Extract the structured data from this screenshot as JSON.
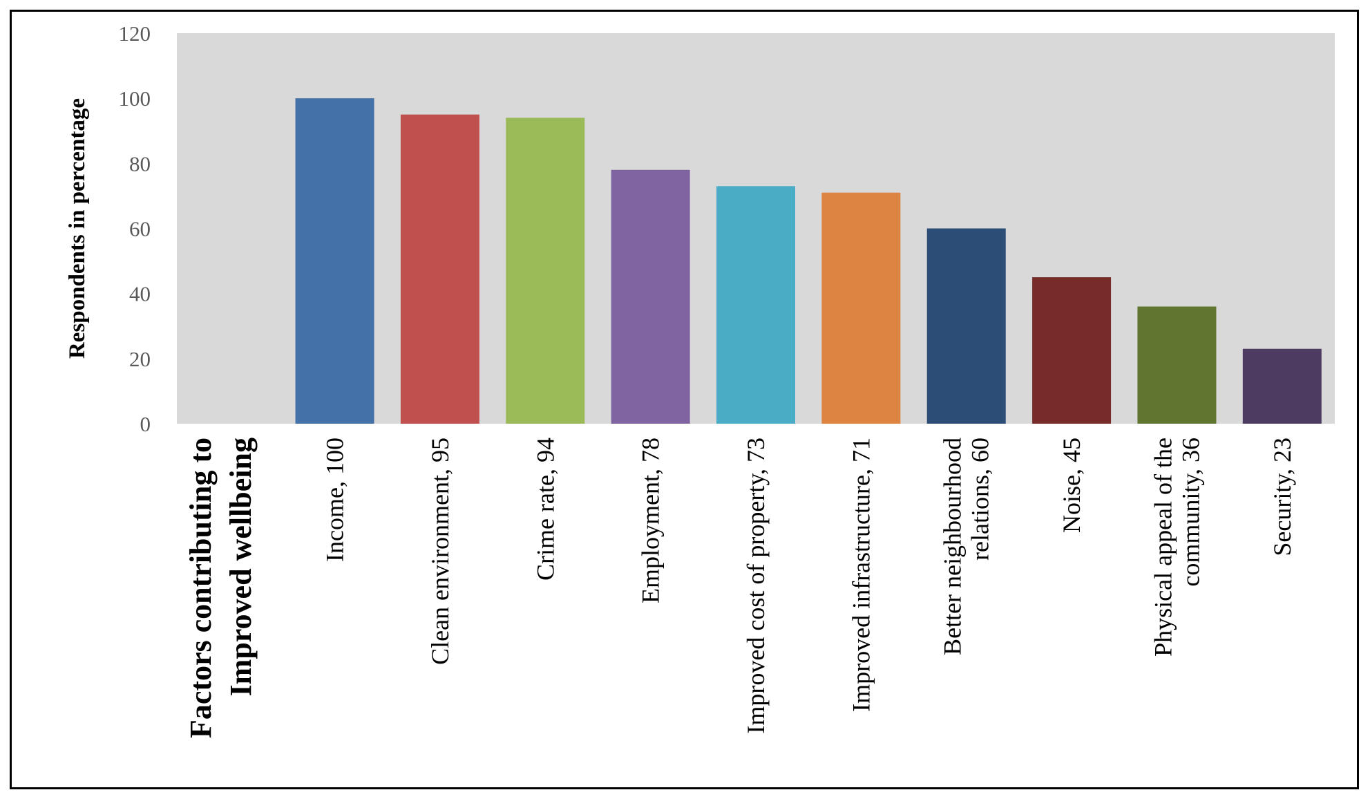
{
  "chart_data": {
    "type": "bar",
    "title": "",
    "xlabel_lines": [
      "Factors contributing to",
      "Improved wellbeing"
    ],
    "ylabel": "Respondents in percentage",
    "ylim": [
      0,
      120
    ],
    "yticks": [
      0,
      20,
      40,
      60,
      80,
      100,
      120
    ],
    "grid": false,
    "legend": "none",
    "plot_background": "#d9d9d9",
    "categories": [
      {
        "lines": [
          "Income, 100"
        ],
        "value": 100,
        "color": "#4472a8"
      },
      {
        "lines": [
          "Clean environment, 95"
        ],
        "value": 95,
        "color": "#c0504d"
      },
      {
        "lines": [
          "Crime rate, 94"
        ],
        "value": 94,
        "color": "#9bbb59"
      },
      {
        "lines": [
          "Employment, 78"
        ],
        "value": 78,
        "color": "#8064a2"
      },
      {
        "lines": [
          "Improved cost of property, 73"
        ],
        "value": 73,
        "color": "#4bacc6"
      },
      {
        "lines": [
          "Improved infrastructure, 71"
        ],
        "value": 71,
        "color": "#dd8443"
      },
      {
        "lines": [
          "Better neighbourhood",
          "relations, 60"
        ],
        "value": 60,
        "color": "#2c4d75"
      },
      {
        "lines": [
          "Noise, 45"
        ],
        "value": 45,
        "color": "#772c2a"
      },
      {
        "lines": [
          "Physical appeal of the",
          "community, 36"
        ],
        "value": 36,
        "color": "#5f7530"
      },
      {
        "lines": [
          "Security, 23"
        ],
        "value": 23,
        "color": "#4d3b62"
      }
    ]
  }
}
